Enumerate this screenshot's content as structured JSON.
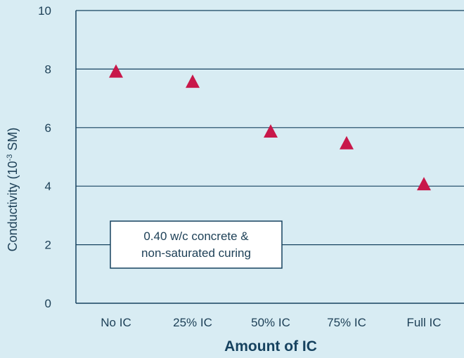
{
  "chart_data": {
    "type": "scatter",
    "title": "",
    "xlabel": "Amount of IC",
    "ylabel_main": "Conductivity (10",
    "ylabel_exp": "-3",
    "ylabel_unit": " SM)",
    "categories": [
      "No IC",
      "25% IC",
      "50% IC",
      "75% IC",
      "Full IC"
    ],
    "values": [
      7.9,
      7.55,
      5.85,
      5.45,
      4.05
    ],
    "ylim": [
      0,
      10
    ],
    "yticks": [
      "0",
      "2",
      "4",
      "6",
      "8",
      "10"
    ],
    "grid": true,
    "marker": "triangle",
    "annotation_lines": [
      "0.40 w/c concrete &",
      "non-saturated curing"
    ],
    "colors": {
      "background": "#d8ecf3",
      "marker": "#c8184a",
      "axis": "#16425f"
    }
  }
}
